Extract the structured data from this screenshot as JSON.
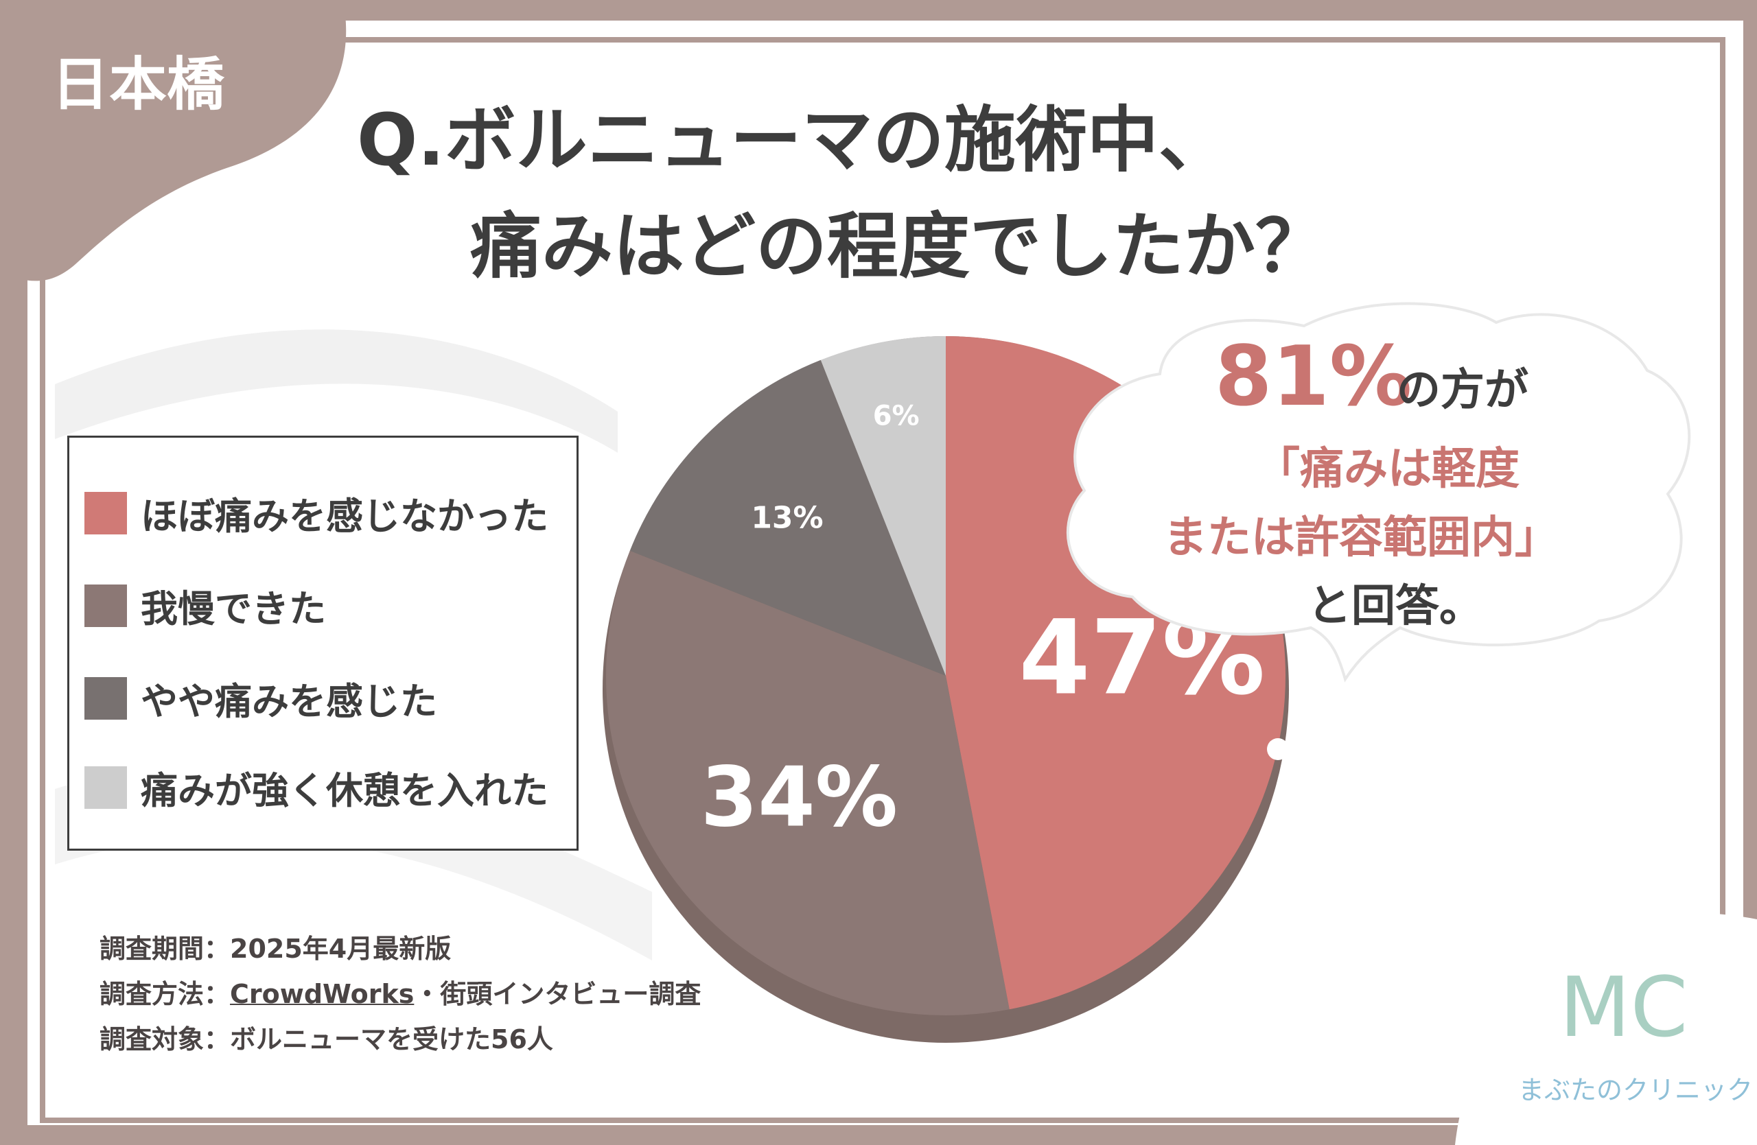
{
  "corner_tag": "日本橋",
  "title": {
    "line1": "Q.ボルニューマの施術中、",
    "line2": "痛みはどの程度でしたか？"
  },
  "colors": {
    "frame": "#b09a94",
    "slice1": "#d07a76",
    "slice2": "#8c7875",
    "slice3": "#787170",
    "slice4": "#cdcdcd",
    "accent_text": "#c97571",
    "dark_text": "#3d3d3d"
  },
  "chart_data": {
    "type": "pie",
    "categories": [
      "ほぼ痛みを感じなかった",
      "我慢できた",
      "やや痛みを感じた",
      "痛みが強く休憩を入れた"
    ],
    "values": [
      47,
      34,
      13,
      6
    ],
    "labels": [
      "47%",
      "34%",
      "13%",
      "6%"
    ],
    "legend": "left"
  },
  "callout": {
    "big_number": "81%",
    "suffix": "の方が",
    "line2": "「痛みは軽度",
    "line3": "または許容範囲内」",
    "line4": "と回答。"
  },
  "survey": {
    "period": "調査期間：2025年4月最新版",
    "method_prefix": "調査方法：",
    "method_link": "CrowdWorks",
    "method_suffix": "・街頭インタビュー調査",
    "target": "調査対象：ボルニューマを受けた56人"
  },
  "brand": {
    "logo": "MC",
    "name": "まぶたのクリニック"
  }
}
